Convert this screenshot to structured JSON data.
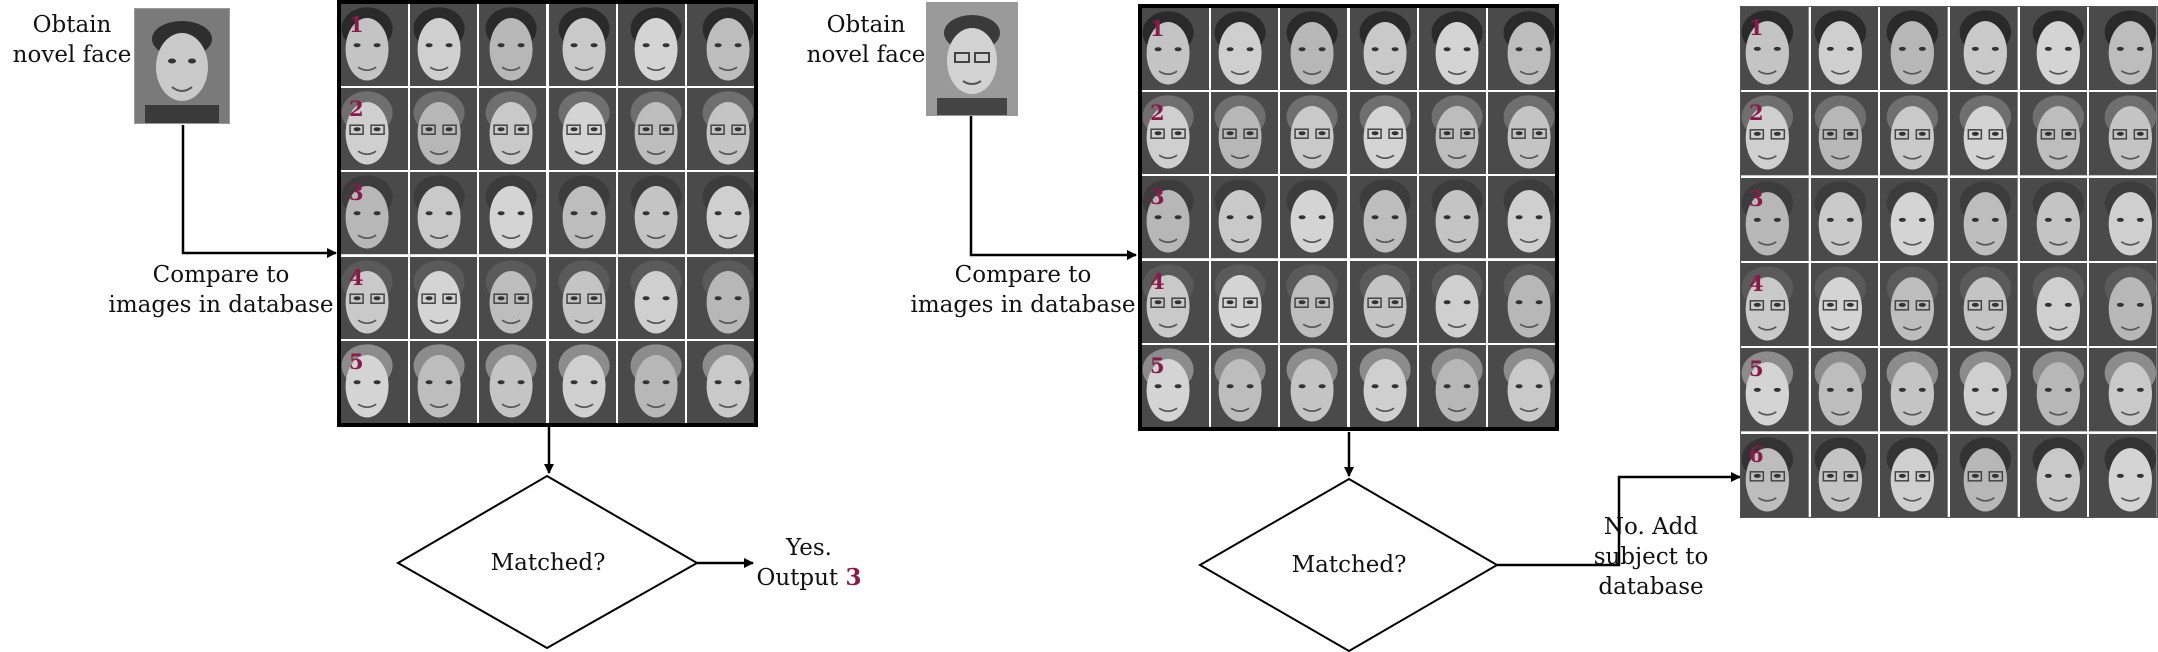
{
  "left": {
    "obtain_label": [
      "Obtain",
      "novel face"
    ],
    "compare_label": [
      "Compare to",
      "images in database"
    ],
    "decision_label": "Matched?",
    "result_label": [
      "Yes.",
      "Output"
    ],
    "result_number": "3",
    "row_numbers": [
      "1",
      "2",
      "3",
      "4",
      "5"
    ]
  },
  "right": {
    "obtain_label": [
      "Obtain",
      "novel face"
    ],
    "compare_label": [
      "Compare to",
      "images in database"
    ],
    "decision_label": "Matched?",
    "result_label": [
      "No. Add",
      "subject to",
      "database"
    ],
    "row_numbers": [
      "1",
      "2",
      "3",
      "4",
      "5"
    ],
    "updated_row_numbers": [
      "1",
      "2",
      "3",
      "4",
      "5",
      "6"
    ]
  },
  "colors": {
    "accent": "#8b1a4a",
    "line": "#000000",
    "photo_bg": "#4a4a4a"
  }
}
